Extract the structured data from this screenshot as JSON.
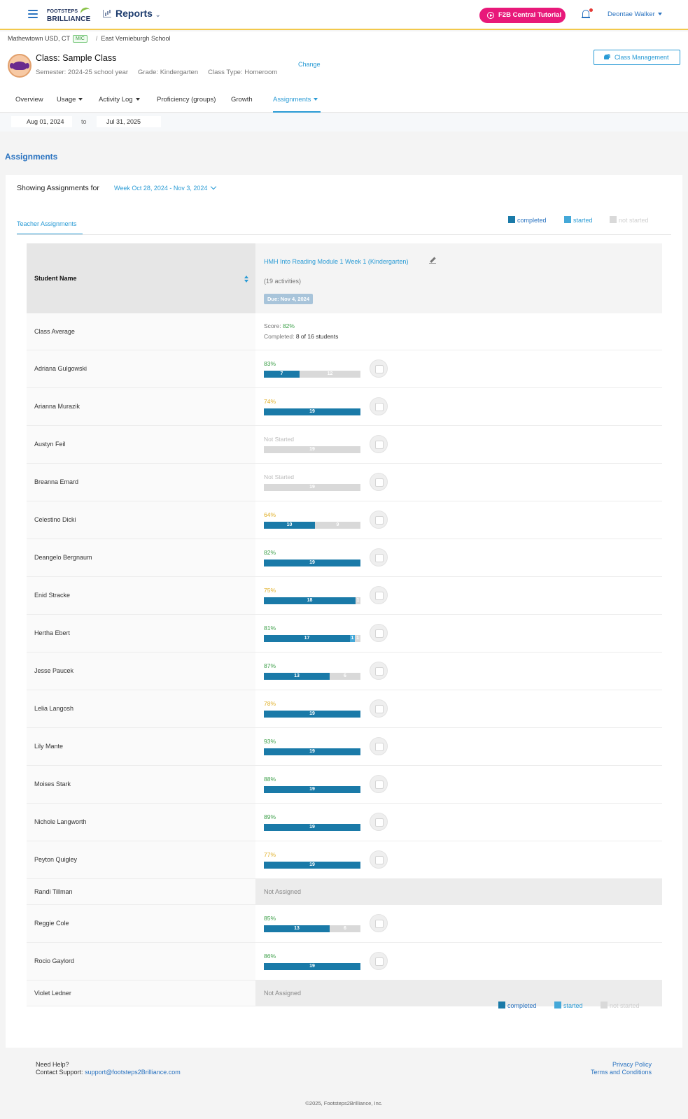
{
  "topbar": {
    "logo_line1": "FOOTSTEPS",
    "logo_line2": "BRILLIANCE",
    "section_title": "Reports",
    "tutorial_button": "F2B Central Tutorial",
    "user_name": "Deontae Walker"
  },
  "breadcrumb": {
    "district": "Mathewtown USD, CT",
    "badge": "MIC",
    "school": "East Vernieburgh School"
  },
  "class_info": {
    "title": "Class: Sample Class",
    "semester": "Semester: 2024-25 school year",
    "grade": "Grade: Kindergarten",
    "class_type": "Class Type: Homeroom",
    "change_link": "Change",
    "class_management_button": "Class Management"
  },
  "tabs": [
    {
      "label": "Overview",
      "dropdown": false
    },
    {
      "label": "Usage",
      "dropdown": true
    },
    {
      "label": "Activity Log",
      "dropdown": true
    },
    {
      "label": "Proficiency (groups)",
      "dropdown": false
    },
    {
      "label": "Growth",
      "dropdown": false
    },
    {
      "label": "Assignments",
      "dropdown": true,
      "active": true
    }
  ],
  "date_range": {
    "from": "Aug 01, 2024",
    "separator": "to",
    "to": "Jul 31, 2025"
  },
  "page_heading": "Assignments",
  "filter": {
    "label": "Showing Assignments for",
    "week": "Week Oct 28, 2024 - Nov 3, 2024"
  },
  "subtab": "Teacher Assignments",
  "legend": {
    "completed": "completed",
    "started": "started",
    "not_started": "not started",
    "colors": {
      "completed": "#1a7aa8",
      "started": "#44a8d8",
      "not_started": "#d9d9d9"
    }
  },
  "table": {
    "student_header": "Student Name",
    "assignment_title": "HMH Into Reading Module 1 Week 1 (Kindergarten)",
    "activities": "(19 activities)",
    "due": "Due: Nov 4, 2024",
    "class_average": {
      "label": "Class Average",
      "score_label": "Score:",
      "score": "82%",
      "completed_label": "Completed:",
      "completed": "8 of 16 students"
    },
    "total_activities": 19,
    "students": [
      {
        "name": "Adriana Gulgowski",
        "pct": "83%",
        "completed": 7,
        "started": 0,
        "not_started": 12,
        "status": "scored"
      },
      {
        "name": "Arianna Murazik",
        "pct": "74%",
        "completed": 19,
        "started": 0,
        "not_started": 0,
        "status": "scored"
      },
      {
        "name": "Austyn Feil",
        "pct": "Not Started",
        "completed": 0,
        "started": 0,
        "not_started": 19,
        "status": "not_started"
      },
      {
        "name": "Breanna Emard",
        "pct": "Not Started",
        "completed": 0,
        "started": 0,
        "not_started": 19,
        "status": "not_started"
      },
      {
        "name": "Celestino Dicki",
        "pct": "64%",
        "completed": 10,
        "started": 0,
        "not_started": 9,
        "status": "scored"
      },
      {
        "name": "Deangelo Bergnaum",
        "pct": "82%",
        "completed": 19,
        "started": 0,
        "not_started": 0,
        "status": "scored"
      },
      {
        "name": "Enid Stracke",
        "pct": "75%",
        "completed": 18,
        "started": 0,
        "not_started": 1,
        "status": "scored"
      },
      {
        "name": "Hertha Ebert",
        "pct": "81%",
        "completed": 17,
        "started": 1,
        "not_started": 1,
        "status": "scored"
      },
      {
        "name": "Jesse Paucek",
        "pct": "87%",
        "completed": 13,
        "started": 0,
        "not_started": 6,
        "status": "scored"
      },
      {
        "name": "Lelia Langosh",
        "pct": "78%",
        "completed": 19,
        "started": 0,
        "not_started": 0,
        "status": "scored"
      },
      {
        "name": "Lily Mante",
        "pct": "93%",
        "completed": 19,
        "started": 0,
        "not_started": 0,
        "status": "scored"
      },
      {
        "name": "Moises Stark",
        "pct": "88%",
        "completed": 19,
        "started": 0,
        "not_started": 0,
        "status": "scored"
      },
      {
        "name": "Nichole Langworth",
        "pct": "89%",
        "completed": 19,
        "started": 0,
        "not_started": 0,
        "status": "scored"
      },
      {
        "name": "Peyton Quigley",
        "pct": "77%",
        "completed": 19,
        "started": 0,
        "not_started": 0,
        "status": "scored"
      },
      {
        "name": "Randi Tillman",
        "pct": "Not Assigned",
        "status": "not_assigned"
      },
      {
        "name": "Reggie Cole",
        "pct": "85%",
        "completed": 13,
        "started": 0,
        "not_started": 6,
        "status": "scored"
      },
      {
        "name": "Rocio Gaylord",
        "pct": "86%",
        "completed": 19,
        "started": 0,
        "not_started": 0,
        "status": "scored"
      },
      {
        "name": "Violet Ledner",
        "pct": "Not Assigned",
        "status": "not_assigned"
      }
    ],
    "score_colors": {
      "high": "#3ea04a",
      "mid": "#e0b02a",
      "none": "#bbbbbb"
    }
  },
  "footer": {
    "help": "Need Help?",
    "contact_label": "Contact Support:",
    "contact_email": "support@footsteps2Brilliance.com",
    "privacy": "Privacy Policy",
    "terms": "Terms and Conditions",
    "copyright": "©2025, Footsteps2Brilliance, Inc."
  }
}
